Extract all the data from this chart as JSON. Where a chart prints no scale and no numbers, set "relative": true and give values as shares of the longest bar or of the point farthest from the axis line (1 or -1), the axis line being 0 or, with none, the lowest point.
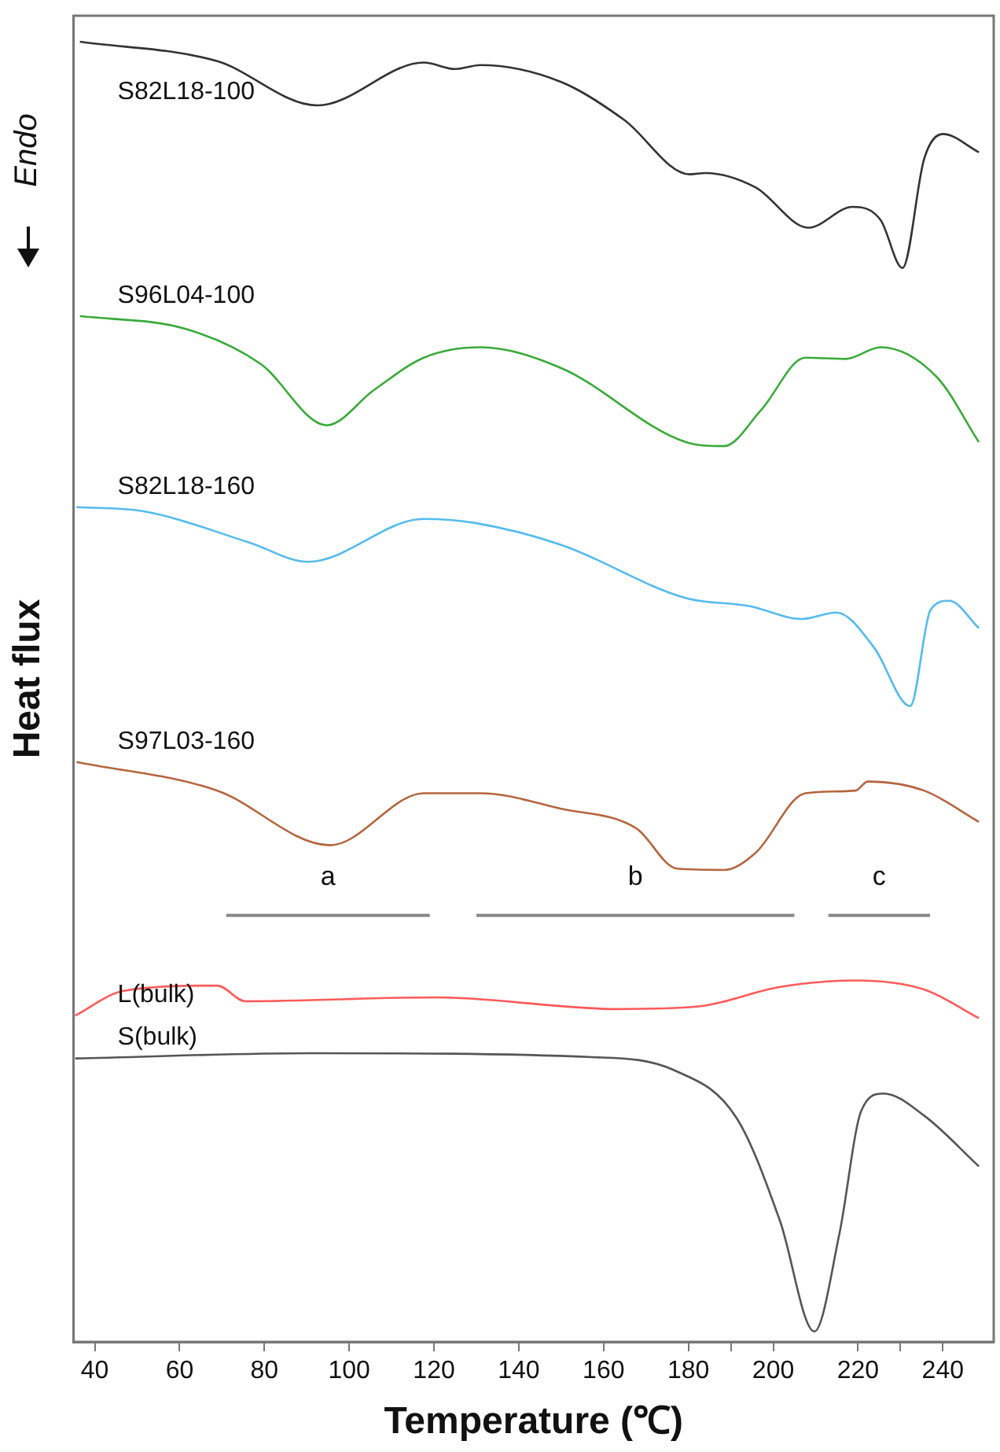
{
  "chart_data": {
    "type": "line",
    "relative": true,
    "xlabel": "Temperature (℃)",
    "ylabel": "Heat flux",
    "annotations": [
      "Endo",
      "a",
      "b",
      "c"
    ],
    "xlim": [
      35,
      252
    ],
    "xticks": [
      40,
      60,
      80,
      100,
      120,
      140,
      160,
      180,
      {
        "value": 190,
        "label": null
      },
      200,
      220,
      {
        "value": 230,
        "label": null
      },
      240
    ],
    "grid": false,
    "legend": false,
    "marker": "none",
    "line_style": "solid",
    "series": [
      {
        "color": "#888888",
        "x": [
          71,
          119
        ],
        "values": [
          0.328,
          0.328
        ]
      },
      {
        "color": "#888888",
        "x": [
          130,
          205
        ],
        "values": [
          0.328,
          0.328
        ]
      },
      {
        "color": "#888888",
        "x": [
          213,
          237
        ],
        "values": [
          0.328,
          0.328
        ]
      },
      {
        "name": "S82L18-100",
        "color": "#333333",
        "x": [
          36.5,
          68.9,
          92.5,
          117.6,
          125,
          130.9,
          150,
          164.8,
          180.3,
          184,
          195.8,
          208.3,
          218.7,
          225.3,
          230.5,
          235.6,
          240,
          248.5
        ],
        "values": [
          1,
          0.985,
          0.951,
          0.984,
          0.979,
          0.982,
          0.969,
          0.94,
          0.898,
          0.899,
          0.888,
          0.857,
          0.873,
          0.863,
          0.826,
          0.91,
          0.929,
          0.915
        ]
      },
      {
        "name": "S96L04-100",
        "color": "#3aaa3a",
        "x": [
          36.5,
          61.5,
          79.2,
          94.7,
          105.8,
          117.6,
          130.9,
          150,
          179.5,
          188.4,
          197.2,
          207.6,
          217.1,
          225.3,
          238.6,
          248.5
        ],
        "values": [
          0.789,
          0.779,
          0.752,
          0.705,
          0.732,
          0.757,
          0.765,
          0.749,
          0.692,
          0.689,
          0.717,
          0.757,
          0.756,
          0.765,
          0.742,
          0.692
        ]
      },
      {
        "name": "S82L18-160",
        "color": "#55bbee",
        "x": [
          35.7,
          51.2,
          76.3,
          90.3,
          117.6,
          129.4,
          150,
          179.5,
          194.3,
          206.8,
          214.9,
          223.8,
          232.3,
          237.1,
          241.5,
          248.5
        ],
        "values": [
          0.642,
          0.639,
          0.615,
          0.6,
          0.633,
          0.63,
          0.613,
          0.572,
          0.566,
          0.556,
          0.561,
          0.534,
          0.489,
          0.563,
          0.57,
          0.549
        ]
      },
      {
        "name": "S97L03-160",
        "color": "#b5653f",
        "x": [
          35.7,
          68.9,
          95.5,
          117.6,
          130.9,
          150,
          167.7,
          177.3,
          188.4,
          195.8,
          207.6,
          219.4,
          222.3,
          235.6,
          248.5
        ],
        "values": [
          0.446,
          0.424,
          0.382,
          0.422,
          0.422,
          0.41,
          0.395,
          0.364,
          0.363,
          0.376,
          0.422,
          0.424,
          0.431,
          0.424,
          0.4
        ]
      },
      {
        "name": "L(bulk)",
        "color": "#ff5a5a",
        "x": [
          35.4,
          46.8,
          68.9,
          75.5,
          120.5,
          163.2,
          182.4,
          201.6,
          219.4,
          235.6,
          248.5
        ],
        "values": [
          0.251,
          0.27,
          0.274,
          0.262,
          0.265,
          0.256,
          0.258,
          0.273,
          0.278,
          0.271,
          0.249
        ]
      },
      {
        "name": "S(bulk)",
        "color": "#555555",
        "x": [
          35.4,
          91,
          157.4,
          176.6,
          191.4,
          201.6,
          209.7,
          215.6,
          220.8,
          226,
          235.6,
          248.5
        ],
        "values": [
          0.218,
          0.222,
          0.219,
          0.209,
          0.172,
          0.093,
          0.008,
          0.083,
          0.178,
          0.191,
          0.174,
          0.135
        ]
      }
    ]
  }
}
